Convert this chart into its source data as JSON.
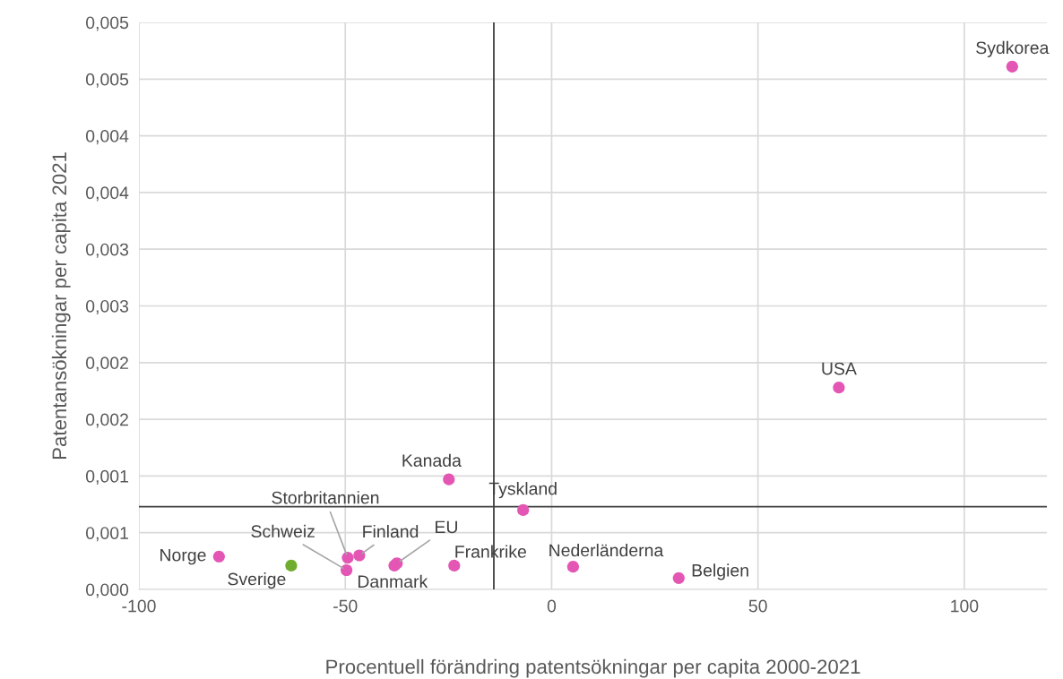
{
  "chart_data": {
    "type": "scatter",
    "xlabel": "Procentuell förändring patentsökningar per capita 2000-2021",
    "ylabel": "Patentansökningar per capita 2021",
    "x": [
      111.6,
      69.6,
      -24.9,
      -6.9,
      -80.6,
      -63.1,
      -49.4,
      -49.7,
      -46.6,
      -37.5,
      -38.1,
      -23.6,
      5.2,
      30.8
    ],
    "values": [
      0.00461,
      0.00178,
      0.00097,
      0.0007,
      0.00029,
      0.00021,
      0.00028,
      0.00017,
      0.0003,
      0.00023,
      0.00021,
      0.00021,
      0.0002,
      0.0001
    ],
    "colors": [
      "#e356b4",
      "#e356b4",
      "#e356b4",
      "#e356b4",
      "#e356b4",
      "#70ad2f",
      "#e356b4",
      "#e356b4",
      "#e356b4",
      "#e356b4",
      "#e356b4",
      "#e356b4",
      "#e356b4",
      "#e356b4"
    ],
    "annotations": [
      {
        "text": "Sydkorea",
        "x": 111.6,
        "y": 0.00461
      },
      {
        "text": "USA",
        "x": 69.6,
        "y": 0.00178
      },
      {
        "text": "Kanada",
        "x": -24.9,
        "y": 0.00097
      },
      {
        "text": "Tyskland",
        "x": -6.9,
        "y": 0.0007
      },
      {
        "text": "Norge",
        "x": -80.6,
        "y": 0.00029
      },
      {
        "text": "Sverige",
        "x": -63.1,
        "y": 0.00021
      },
      {
        "text": "Storbritannien",
        "x": -49.4,
        "y": 0.00028
      },
      {
        "text": "Schweiz",
        "x": -49.7,
        "y": 0.00017
      },
      {
        "text": "Finland",
        "x": -46.6,
        "y": 0.0003
      },
      {
        "text": "EU",
        "x": -37.5,
        "y": 0.00023
      },
      {
        "text": "Danmark",
        "x": -38.1,
        "y": 0.00021
      },
      {
        "text": "Frankrike",
        "x": -23.6,
        "y": 0.00021
      },
      {
        "text": "Nederländerna",
        "x": 5.2,
        "y": 0.0002
      },
      {
        "text": "Belgien",
        "x": 30.8,
        "y": 0.0001
      }
    ],
    "xlim": [
      -100,
      120
    ],
    "xticks": [
      -100,
      -50,
      0,
      50,
      100
    ],
    "ylim": [
      0,
      0.005
    ],
    "yticks": [
      {
        "value": 0,
        "label": "0,000"
      },
      {
        "value": 0.0005,
        "label": "0,001"
      },
      {
        "value": 0.001,
        "label": "0,001"
      },
      {
        "value": 0.0015,
        "label": "0,002"
      },
      {
        "value": 0.002,
        "label": "0,002"
      },
      {
        "value": 0.0025,
        "label": "0,003"
      },
      {
        "value": 0.003,
        "label": "0,003"
      },
      {
        "value": 0.0035,
        "label": "0,004"
      },
      {
        "value": 0.004,
        "label": "0,004"
      },
      {
        "value": 0.0045,
        "label": "0,005"
      },
      {
        "value": 0.005,
        "label": "0,005"
      }
    ],
    "ref_lines": [
      {
        "axis": "x",
        "value": -14,
        "color": "#404040"
      },
      {
        "axis": "y",
        "value": 0.00073,
        "color": "#404040"
      }
    ],
    "grid": true,
    "marker": "circle"
  }
}
